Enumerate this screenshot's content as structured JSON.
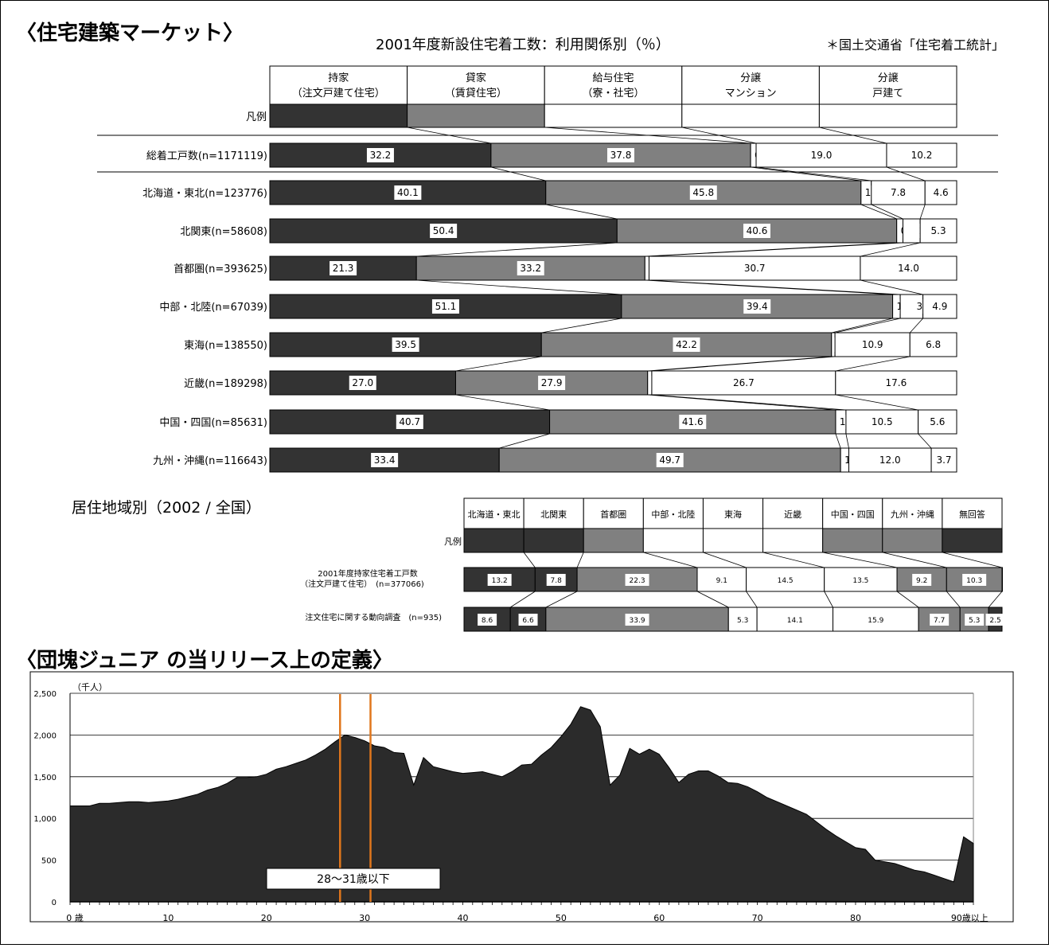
{
  "section1": {
    "heading": "〈住宅建築マーケット〉",
    "title": "2001年度新設住宅着工数：利用関係別（％）",
    "source": "＊国土交通省「住宅着工統計」"
  },
  "section2": {
    "heading": "〈団塊ジュニア の当リリース上の定義〉"
  },
  "chart_data": [
    {
      "type": "bar",
      "stacked": "100%",
      "orientation": "horizontal",
      "title": "2001年度新設住宅着工数：利用関係別（％）",
      "legend_label": "凡例",
      "legend_entries": [
        {
          "line1": "持家",
          "line2": "（注文戸建て住宅）",
          "color": "#333333"
        },
        {
          "line1": "貸家",
          "line2": "（賃貸住宅）",
          "color": "#808080"
        },
        {
          "line1": "給与住宅",
          "line2": "（寮・社宅）",
          "color": "#ffffff"
        },
        {
          "line1": "分譲",
          "line2": "マンション",
          "color": "#ffffff"
        },
        {
          "line1": "分譲",
          "line2": "戸建て",
          "color": "#ffffff"
        }
      ],
      "categories": [
        "総着工戸数(n=1171119)",
        "北海道・東北(n=123776)",
        "北関東(n=58608)",
        "首都圏(n=393625)",
        "中部・北陸(n=67039)",
        "東海(n=138550)",
        "近畿(n=189298)",
        "中国・四国(n=85631)",
        "九州・沖縄(n=116643)"
      ],
      "series": [
        {
          "name": "持家（注文戸建て住宅）",
          "values": [
            32.2,
            40.1,
            50.4,
            21.3,
            51.1,
            39.5,
            27.0,
            40.7,
            33.4
          ]
        },
        {
          "name": "貸家（賃貸住宅）",
          "values": [
            37.8,
            45.8,
            40.6,
            33.2,
            39.4,
            42.2,
            27.9,
            41.6,
            49.7
          ]
        },
        {
          "name": "給与住宅（寮・社宅）",
          "values": [
            0.8,
            1.5,
            0.9,
            0.6,
            1.1,
            0.5,
            0.6,
            1.5,
            1.2
          ]
        },
        {
          "name": "分譲マンション",
          "values": [
            19.0,
            7.8,
            2.5,
            30.7,
            3.3,
            10.9,
            26.7,
            10.5,
            12.0
          ]
        },
        {
          "name": "分譲戸建て",
          "values": [
            10.2,
            4.6,
            5.3,
            14.0,
            4.9,
            6.8,
            17.6,
            5.6,
            3.7
          ]
        }
      ]
    },
    {
      "type": "bar",
      "stacked": "100%",
      "orientation": "horizontal",
      "title": "居住地域別（2002 / 全国）",
      "legend_label": "凡例",
      "legend_entries": [
        {
          "label": "北海道・東北",
          "color": "#333333"
        },
        {
          "label": "北関東",
          "color": "#333333"
        },
        {
          "label": "首都圏",
          "color": "#808080"
        },
        {
          "label": "中部・北陸",
          "color": "#ffffff"
        },
        {
          "label": "東海",
          "color": "#ffffff"
        },
        {
          "label": "近畿",
          "color": "#ffffff"
        },
        {
          "label": "中国・四国",
          "color": "#808080"
        },
        {
          "label": "九州・沖縄",
          "color": "#808080"
        },
        {
          "label": "無回答",
          "color": "#333333"
        }
      ],
      "rows": [
        {
          "label_line1": "2001年度持家住宅着工戸数",
          "label_line2": "（注文戸建て住宅）　(n=377066)",
          "values": [
            13.2,
            7.8,
            22.3,
            9.1,
            14.5,
            13.5,
            9.2,
            10.3,
            0.0
          ]
        },
        {
          "label_line1": "注文住宅に関する動向調査　(n=935)",
          "label_line2": "",
          "values": [
            8.6,
            6.6,
            33.9,
            5.3,
            14.1,
            15.9,
            7.7,
            5.3,
            2.5
          ]
        }
      ]
    },
    {
      "type": "area",
      "ylabel": "（千人）",
      "ylim": [
        0,
        2500
      ],
      "yticks": [
        0,
        500,
        1000,
        1500,
        2000,
        2500
      ],
      "yticklabels": [
        "0",
        "500",
        "1,000",
        "1,500",
        "2,000",
        "2,500"
      ],
      "xlim": [
        0,
        92
      ],
      "xticks": [
        0,
        10,
        20,
        30,
        40,
        50,
        60,
        70,
        80,
        90
      ],
      "xticklabels": [
        "0 歳",
        "10",
        "20",
        "30",
        "40",
        "50",
        "60",
        "70",
        "80",
        "90歳以上"
      ],
      "grid": true,
      "annotation": "28～31歳以下",
      "highlight_lines_x": [
        27.5,
        30.6
      ],
      "x": [
        0,
        1,
        2,
        3,
        4,
        5,
        6,
        7,
        8,
        9,
        10,
        11,
        12,
        13,
        14,
        15,
        16,
        17,
        18,
        19,
        20,
        21,
        22,
        23,
        24,
        25,
        26,
        27,
        28,
        29,
        30,
        31,
        32,
        33,
        34,
        35,
        36,
        37,
        38,
        39,
        40,
        41,
        42,
        43,
        44,
        45,
        46,
        47,
        48,
        49,
        50,
        51,
        52,
        53,
        54,
        55,
        56,
        57,
        58,
        59,
        60,
        61,
        62,
        63,
        64,
        65,
        66,
        67,
        68,
        69,
        70,
        71,
        72,
        73,
        74,
        75,
        76,
        77,
        78,
        79,
        80,
        81,
        82,
        83,
        84,
        85,
        86,
        87,
        88,
        89,
        90,
        91,
        92
      ],
      "values": [
        1150,
        1150,
        1150,
        1180,
        1180,
        1190,
        1200,
        1200,
        1190,
        1200,
        1210,
        1230,
        1260,
        1290,
        1340,
        1370,
        1420,
        1490,
        1490,
        1500,
        1530,
        1590,
        1620,
        1660,
        1700,
        1760,
        1830,
        1920,
        2000,
        1970,
        1930,
        1870,
        1850,
        1790,
        1780,
        1400,
        1730,
        1620,
        1590,
        1560,
        1540,
        1550,
        1560,
        1530,
        1500,
        1560,
        1640,
        1650,
        1760,
        1850,
        1980,
        2130,
        2340,
        2300,
        2100,
        1400,
        1520,
        1840,
        1770,
        1830,
        1770,
        1610,
        1430,
        1530,
        1570,
        1570,
        1510,
        1430,
        1420,
        1380,
        1320,
        1250,
        1200,
        1150,
        1100,
        1050,
        960,
        870,
        790,
        720,
        650,
        630,
        500,
        480,
        460,
        420,
        380,
        360,
        320,
        280,
        240,
        780,
        700
      ]
    }
  ]
}
